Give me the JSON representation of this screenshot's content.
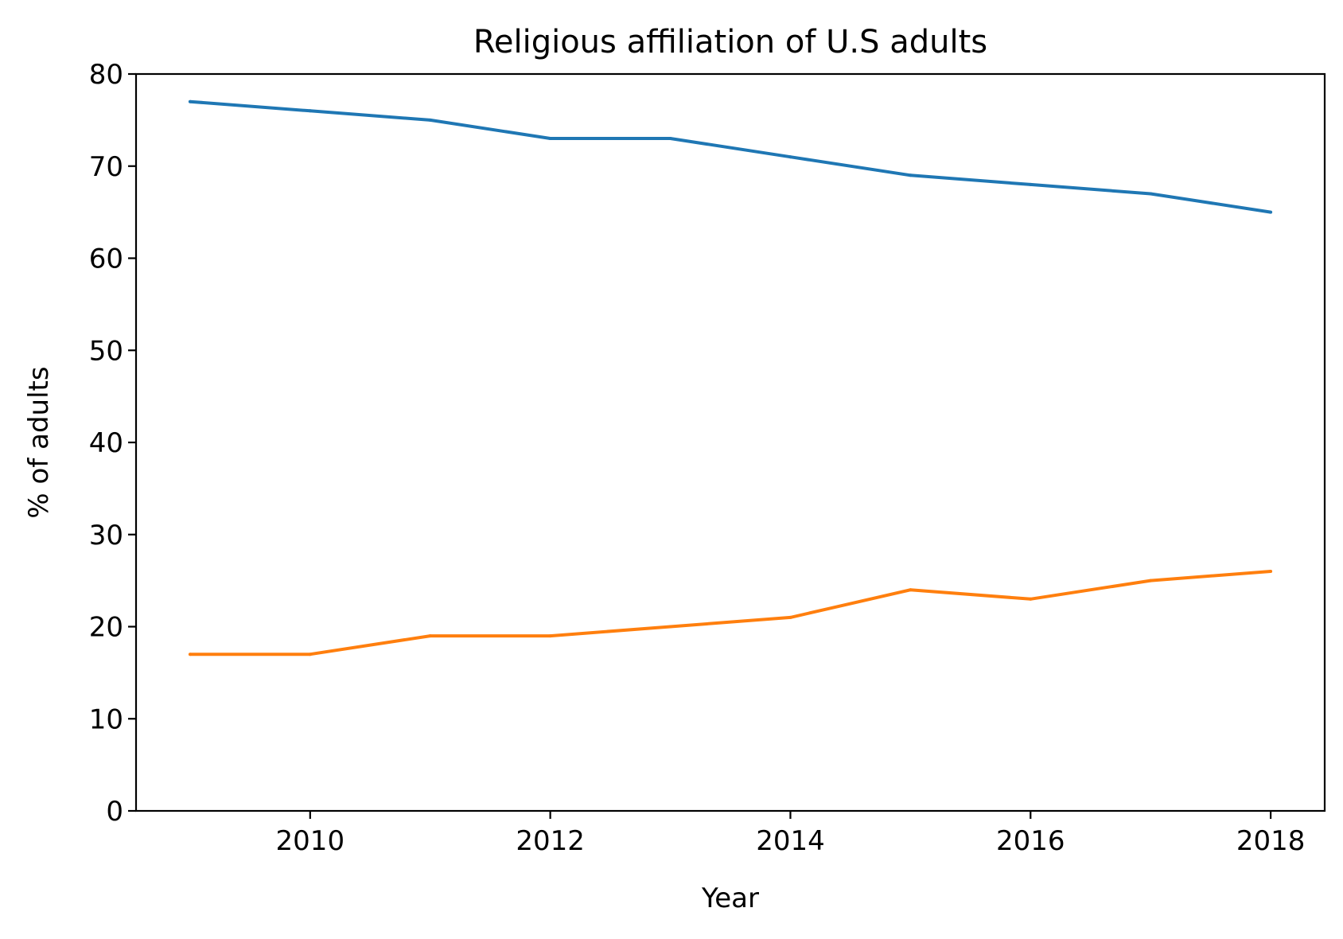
{
  "chart_data": {
    "type": "line",
    "title": "Religious affiliation of U.S adults",
    "xlabel": "Year",
    "ylabel": "% of adults",
    "x": [
      2009,
      2010,
      2011,
      2012,
      2013,
      2014,
      2015,
      2016,
      2017,
      2018
    ],
    "series": [
      {
        "values": [
          77,
          76,
          75,
          73,
          73,
          71,
          69,
          68,
          67,
          65
        ],
        "color": "#1f77b4"
      },
      {
        "values": [
          17,
          17,
          19,
          19,
          20,
          21,
          24,
          23,
          25,
          26
        ],
        "color": "#ff7f0e"
      }
    ],
    "xlim": [
      2008.55,
      2018.45
    ],
    "ylim": [
      0,
      80
    ],
    "x_ticks": [
      2010,
      2012,
      2014,
      2016,
      2018
    ],
    "y_ticks": [
      0,
      10,
      20,
      30,
      40,
      50,
      60,
      70,
      80
    ],
    "grid": false,
    "legend": "none"
  }
}
